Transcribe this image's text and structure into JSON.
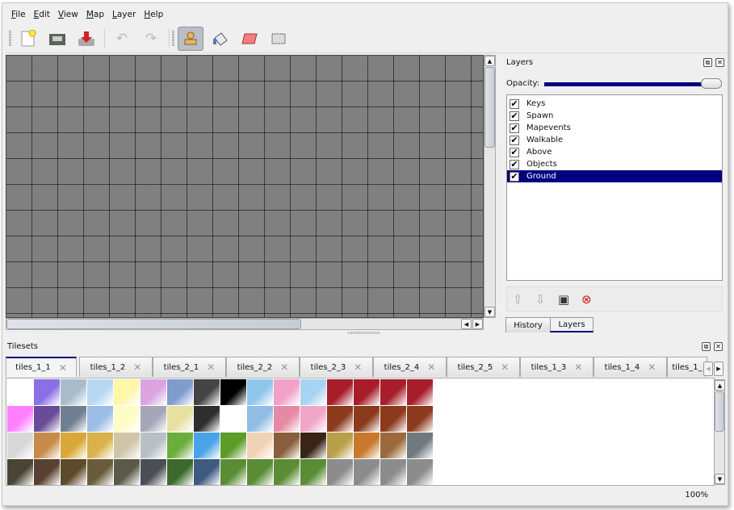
{
  "menu": [
    "File",
    "Edit",
    "View",
    "Map",
    "Layer",
    "Help"
  ],
  "toolbar": {
    "icons": [
      "new-file-icon",
      "open-folder-icon",
      "save-icon",
      "undo-icon",
      "redo-icon",
      "stamp-brush-icon",
      "bucket-fill-icon",
      "eraser-icon",
      "rectangle-select-icon"
    ],
    "active": "stamp-brush-icon"
  },
  "layers_panel": {
    "title": "Layers",
    "opacity_label": "Opacity:",
    "opacity_value": 100,
    "layers": [
      {
        "name": "Keys",
        "visible": true
      },
      {
        "name": "Spawn",
        "visible": true
      },
      {
        "name": "Mapevents",
        "visible": true
      },
      {
        "name": "Walkable",
        "visible": true
      },
      {
        "name": "Above",
        "visible": true
      },
      {
        "name": "Objects",
        "visible": true
      },
      {
        "name": "Ground",
        "visible": true,
        "selected": true
      }
    ],
    "buttons": [
      "move-layer-up-icon",
      "move-layer-down-icon",
      "duplicate-layer-icon",
      "remove-layer-icon"
    ],
    "tabs": [
      "History",
      "Layers"
    ],
    "active_tab": "Layers"
  },
  "tilesets_panel": {
    "title": "Tilesets",
    "tabs": [
      "tiles_1_1",
      "tiles_1_2",
      "tiles_2_1",
      "tiles_2_2",
      "tiles_2_3",
      "tiles_2_4",
      "tiles_2_5",
      "tiles_1_3",
      "tiles_1_4",
      "tiles_1_"
    ],
    "active_tab": "tiles_1_1",
    "tile_colors": [
      "#ffffff",
      "#8a6fe6",
      "#a9bccb",
      "#b7d8f2",
      "#fff6a8",
      "#d9a4e0",
      "#7f9ccd",
      "#444444",
      "#000000",
      "#8fc6ec",
      "#f2a0c8",
      "#a7d4f0",
      "#a81d2a",
      "#a81d2a",
      "#a81d2a",
      "#a81d2a",
      "#ff80ff",
      "#6a4b98",
      "#6f8090",
      "#9cbde6",
      "#fffcc8",
      "#a6a6b8",
      "#e8e0a0",
      "#2e2e2e",
      "#ffffff",
      "#90bde4",
      "#e48aa4",
      "#f0a6c6",
      "#8b3a1c",
      "#8b3a1c",
      "#8b3a1c",
      "#8b3a1c",
      "#d8d8d8",
      "#c88a48",
      "#d9a838",
      "#d8b24a",
      "#cfc6a8",
      "#b8bfc6",
      "#6cae3c",
      "#4aa3e8",
      "#5e9c2a",
      "#f2d2b4",
      "#8a5e3c",
      "#3a2418",
      "#b8a04a",
      "#c8782c",
      "#9c6a3a",
      "#707880",
      "#4a4436",
      "#5a4030",
      "#5c4a2a",
      "#6a5c3a",
      "#5a5a48",
      "#4a4e56",
      "#3c6a2c",
      "#3e5a80",
      "#5a8c34",
      "#5a8c34",
      "#5a8c34",
      "#5a8c34",
      "#8c8c8c",
      "#8c8c8c",
      "#8c8c8c",
      "#8c8c8c"
    ]
  },
  "status": {
    "zoom": "100%"
  }
}
